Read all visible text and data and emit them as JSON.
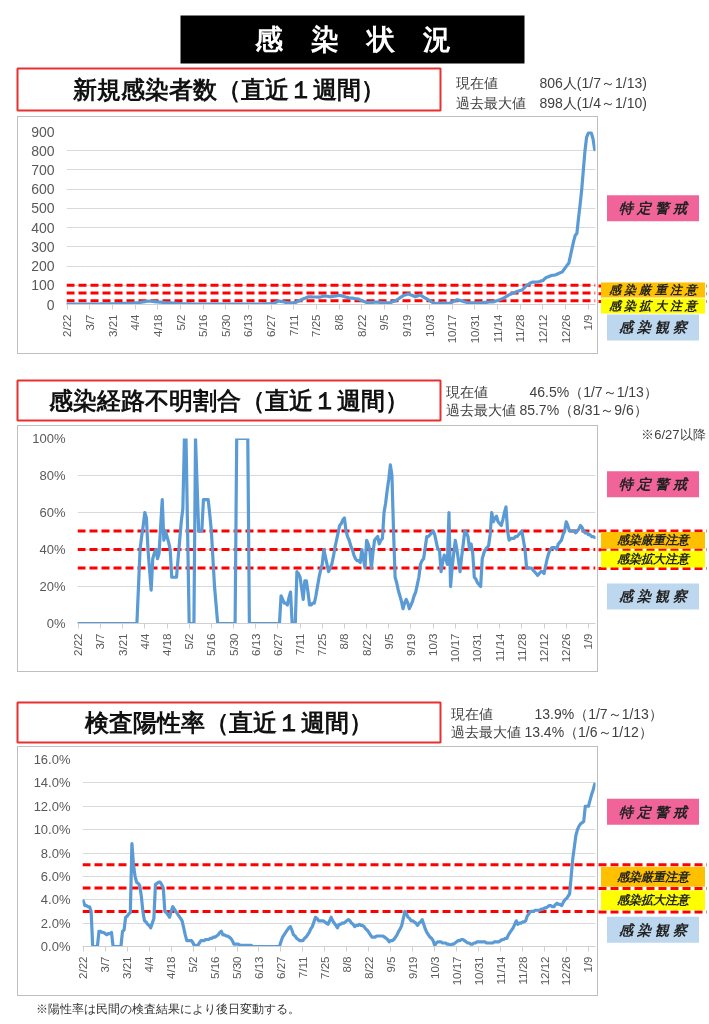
{
  "chart_data": [
    {
      "type": "other",
      "title": "感　染　状　況"
    },
    {
      "type": "line",
      "title": "新規感染者数（直近１週間）",
      "annotations": [
        "現在値　　　806人(1/7～1/13)",
        "過去最大値　898人(1/4～1/10)",
        "特 定 警 戒",
        "感 染 厳 重 注 意",
        "感 染 拡 大 注 意",
        "感 染 観 察"
      ],
      "categories": [
        "2/22",
        null,
        null,
        null,
        null,
        null,
        null,
        null,
        null,
        null,
        null,
        null,
        null,
        null,
        "3/7",
        null,
        null,
        null,
        null,
        null,
        null,
        null,
        null,
        null,
        null,
        null,
        null,
        null,
        "3/21",
        null,
        null,
        null,
        null,
        null,
        null,
        null,
        null,
        null,
        null,
        null,
        null,
        null,
        "4/4",
        null,
        null,
        null,
        null,
        null,
        null,
        null,
        null,
        null,
        null,
        null,
        null,
        null,
        "4/18",
        null,
        null,
        null,
        null,
        null,
        null,
        null,
        null,
        null,
        null,
        null,
        null,
        null,
        "5/2",
        null,
        null,
        null,
        null,
        null,
        null,
        null,
        null,
        null,
        null,
        null,
        null,
        null,
        "5/16",
        null,
        null,
        null,
        null,
        null,
        null,
        null,
        null,
        null,
        null,
        null,
        null,
        null,
        "5/30",
        null,
        null,
        null,
        null,
        null,
        null,
        null,
        null,
        null,
        null,
        null,
        null,
        null,
        "6/13",
        null,
        null,
        null,
        null,
        null,
        null,
        null,
        null,
        null,
        null,
        null,
        null,
        null,
        "6/27",
        null,
        null,
        null,
        null,
        null,
        null,
        null,
        null,
        null,
        null,
        null,
        null,
        null,
        "7/11",
        null,
        null,
        null,
        null,
        null,
        null,
        null,
        null,
        null,
        null,
        null,
        null,
        null,
        "7/25",
        null,
        null,
        null,
        null,
        null,
        null,
        null,
        null,
        null,
        null,
        null,
        null,
        null,
        "8/8",
        null,
        null,
        null,
        null,
        null,
        null,
        null,
        null,
        null,
        null,
        null,
        null,
        null,
        "8/22",
        null,
        null,
        null,
        null,
        null,
        null,
        null,
        null,
        null,
        null,
        null,
        null,
        null,
        "9/5",
        null,
        null,
        null,
        null,
        null,
        null,
        null,
        null,
        null,
        null,
        null,
        null,
        null,
        "9/19",
        null,
        null,
        null,
        null,
        null,
        null,
        null,
        null,
        null,
        null,
        null,
        null,
        null,
        "10/3",
        null,
        null,
        null,
        null,
        null,
        null,
        null,
        null,
        null,
        null,
        null,
        null,
        null,
        "10/17",
        null,
        null,
        null,
        null,
        null,
        null,
        null,
        null,
        null,
        null,
        null,
        null,
        null,
        "10/31",
        null,
        null,
        null,
        null,
        null,
        null,
        null,
        null,
        null,
        null,
        null,
        null,
        null,
        "11/14",
        null,
        null,
        null,
        null,
        null,
        null,
        null,
        null,
        null,
        null,
        null,
        null,
        null,
        "11/28",
        null,
        null,
        null,
        null,
        null,
        null,
        null,
        null,
        null,
        null,
        null,
        null,
        null,
        "12/12",
        null,
        null,
        null,
        null,
        null,
        null,
        null,
        null,
        null,
        null,
        null,
        null,
        null,
        "12/26",
        null,
        null,
        null,
        null,
        null,
        null,
        null,
        null,
        null,
        null,
        null,
        null,
        null,
        "1/9",
        null,
        null,
        null,
        null
      ],
      "series": [
        {
          "color": "#5b9bd5",
          "values": [
            2,
            2,
            2,
            2,
            2,
            2,
            2,
            2,
            2,
            2,
            2,
            2,
            2,
            2,
            2,
            2,
            2,
            2,
            2,
            2,
            2,
            3,
            3,
            3,
            3,
            4,
            4,
            4,
            4,
            4,
            5,
            5,
            5,
            5,
            5,
            6,
            6,
            6,
            6,
            7,
            7,
            7,
            8,
            8,
            9,
            11,
            12,
            14,
            15,
            17,
            18,
            17,
            17,
            16,
            15,
            14,
            13,
            12,
            12,
            11,
            10,
            9,
            9,
            8,
            8,
            7,
            7,
            6,
            6,
            5,
            5,
            4,
            4,
            4,
            3,
            3,
            3,
            2,
            2,
            2,
            2,
            2,
            2,
            2,
            2,
            2,
            2,
            2,
            2,
            2,
            2,
            2,
            2,
            2,
            2,
            2,
            2,
            2,
            2,
            2,
            2,
            2,
            2,
            2,
            2,
            2,
            2,
            2,
            2,
            2,
            2,
            2,
            2,
            2,
            2,
            2,
            2,
            2,
            2,
            2,
            2,
            3,
            3,
            3,
            4,
            4,
            5,
            5,
            8,
            12,
            15,
            18,
            16,
            15,
            13,
            11,
            10,
            8,
            9,
            9,
            10,
            10,
            14,
            18,
            22,
            26,
            30,
            33,
            37,
            40,
            40,
            40,
            39,
            39,
            39,
            38,
            38,
            40,
            43,
            45,
            44,
            43,
            41,
            40,
            42,
            43,
            45,
            46,
            48,
            46,
            44,
            42,
            39,
            37,
            35,
            34,
            33,
            32,
            30,
            29,
            28,
            24,
            21,
            17,
            14,
            10,
            10,
            11,
            11,
            11,
            12,
            12,
            12,
            11,
            11,
            10,
            10,
            9,
            9,
            8,
            11,
            14,
            17,
            20,
            26,
            31,
            37,
            42,
            48,
            50,
            53,
            55,
            51,
            48,
            44,
            40,
            43,
            47,
            50,
            45,
            40,
            35,
            30,
            25,
            20,
            15,
            10,
            5,
            6,
            6,
            7,
            7,
            8,
            8,
            7,
            6,
            5,
            9,
            13,
            17,
            21,
            25,
            23,
            20,
            18,
            15,
            13,
            11,
            10,
            8,
            8,
            8,
            9,
            9,
            9,
            9,
            10,
            10,
            11,
            11,
            12,
            13,
            14,
            14,
            15,
            18,
            21,
            24,
            27,
            30,
            35,
            40,
            45,
            50,
            54,
            57,
            61,
            64,
            68,
            70,
            73,
            75,
            83,
            92,
            100,
            105,
            110,
            115,
            116,
            116,
            117,
            118,
            120,
            123,
            125,
            133,
            140,
            143,
            147,
            150,
            152,
            153,
            155,
            159,
            163,
            166,
            170,
            182,
            193,
            205,
            215,
            253,
            292,
            330,
            360,
            370,
            450,
            520,
            600,
            700,
            800,
            870,
            890,
            898,
            890,
            860,
            806
          ]
        }
      ],
      "ylim": [
        0,
        900
      ],
      "yticks": [
        0,
        100,
        200,
        300,
        400,
        500,
        600,
        700,
        800,
        900
      ],
      "grid": "y",
      "ref_lines": [
        {
          "axis": "y",
          "value": 100,
          "color": "#ff0000",
          "line_style": "dashed"
        },
        {
          "axis": "y",
          "value": 60,
          "color": "#ff0000",
          "line_style": "dashed"
        },
        {
          "axis": "y",
          "value": 20,
          "color": "#ff0000",
          "line_style": "dashed"
        }
      ]
    },
    {
      "type": "line",
      "title": "感染経路不明割合（直近１週間）",
      "annotations": [
        "現在値　　　46.5%（1/7～1/13）",
        "過去最大値 85.7%（8/31～9/6）",
        "特 定 警 戒",
        "感染厳重注意",
        "感染拡大注意",
        "感 染 観 察",
        "※6/27以降"
      ],
      "categories": [
        "2/22",
        null,
        null,
        null,
        null,
        null,
        null,
        null,
        null,
        null,
        null,
        null,
        null,
        null,
        "3/7",
        null,
        null,
        null,
        null,
        null,
        null,
        null,
        null,
        null,
        null,
        null,
        null,
        null,
        "3/21",
        null,
        null,
        null,
        null,
        null,
        null,
        null,
        null,
        null,
        null,
        null,
        null,
        null,
        "4/4",
        null,
        null,
        null,
        null,
        null,
        null,
        null,
        null,
        null,
        null,
        null,
        null,
        null,
        "4/18",
        null,
        null,
        null,
        null,
        null,
        null,
        null,
        null,
        null,
        null,
        null,
        null,
        null,
        "5/2",
        null,
        null,
        null,
        null,
        null,
        null,
        null,
        null,
        null,
        null,
        null,
        null,
        null,
        "5/16",
        null,
        null,
        null,
        null,
        null,
        null,
        null,
        null,
        null,
        null,
        null,
        null,
        null,
        "5/30",
        null,
        null,
        null,
        null,
        null,
        null,
        null,
        null,
        null,
        null,
        null,
        null,
        null,
        "6/13",
        null,
        null,
        null,
        null,
        null,
        null,
        null,
        null,
        null,
        null,
        null,
        null,
        null,
        "6/27",
        null,
        null,
        null,
        null,
        null,
        null,
        null,
        null,
        null,
        null,
        null,
        null,
        null,
        "7/11",
        null,
        null,
        null,
        null,
        null,
        null,
        null,
        null,
        null,
        null,
        null,
        null,
        null,
        "7/25",
        null,
        null,
        null,
        null,
        null,
        null,
        null,
        null,
        null,
        null,
        null,
        null,
        null,
        "8/8",
        null,
        null,
        null,
        null,
        null,
        null,
        null,
        null,
        null,
        null,
        null,
        null,
        null,
        "8/22",
        null,
        null,
        null,
        null,
        null,
        null,
        null,
        null,
        null,
        null,
        null,
        null,
        null,
        "9/5",
        null,
        null,
        null,
        null,
        null,
        null,
        null,
        null,
        null,
        null,
        null,
        null,
        null,
        "9/19",
        null,
        null,
        null,
        null,
        null,
        null,
        null,
        null,
        null,
        null,
        null,
        null,
        null,
        "10/3",
        null,
        null,
        null,
        null,
        null,
        null,
        null,
        null,
        null,
        null,
        null,
        null,
        null,
        "10/17",
        null,
        null,
        null,
        null,
        null,
        null,
        null,
        null,
        null,
        null,
        null,
        null,
        null,
        "10/31",
        null,
        null,
        null,
        null,
        null,
        null,
        null,
        null,
        null,
        null,
        null,
        null,
        null,
        "11/14",
        null,
        null,
        null,
        null,
        null,
        null,
        null,
        null,
        null,
        null,
        null,
        null,
        null,
        "11/28",
        null,
        null,
        null,
        null,
        null,
        null,
        null,
        null,
        null,
        null,
        null,
        null,
        null,
        "12/12",
        null,
        null,
        null,
        null,
        null,
        null,
        null,
        null,
        null,
        null,
        null,
        null,
        null,
        "12/26",
        null,
        null,
        null,
        null,
        null,
        null,
        null,
        null,
        null,
        null,
        null,
        null,
        null,
        "1/9",
        null,
        null,
        null,
        null
      ],
      "series": [
        {
          "color": "#5b9bd5",
          "values": [
            0,
            0,
            0,
            0,
            0,
            0,
            0,
            0,
            0,
            0,
            0,
            0,
            0,
            0,
            0,
            0,
            0,
            0,
            0,
            0,
            0,
            0,
            0,
            0,
            0,
            0,
            0,
            0,
            0,
            0,
            0,
            0,
            0,
            0,
            0,
            0,
            0,
            0,
            20,
            40,
            47,
            53,
            60,
            57,
            40,
            29,
            18,
            35,
            38,
            40,
            35,
            38,
            53,
            67,
            45,
            50,
            47,
            44,
            40,
            25,
            25,
            25,
            25,
            35,
            45,
            55,
            62,
            100,
            100,
            50,
            0,
            0,
            0,
            0,
            100,
            75,
            50,
            50,
            50,
            67,
            67,
            67,
            67,
            59,
            50,
            35,
            20,
            10,
            0,
            0,
            0,
            0,
            0,
            0,
            0,
            0,
            0,
            0,
            0,
            0,
            100,
            100,
            100,
            100,
            100,
            100,
            100,
            100,
            0,
            0,
            0,
            0,
            0,
            0,
            0,
            0,
            0,
            0,
            0,
            0,
            0,
            0,
            0,
            0,
            0,
            0,
            0,
            0,
            15,
            13,
            11,
            11,
            10,
            14,
            17,
            0,
            0,
            0,
            28,
            27,
            25,
            19,
            13,
            23,
            23,
            17,
            10,
            10,
            11,
            11,
            15,
            20,
            25,
            29,
            32,
            40,
            36,
            32,
            28,
            30,
            32,
            36,
            41,
            45,
            49,
            53,
            54,
            56,
            57,
            50,
            47,
            45,
            42,
            40,
            37,
            35,
            34,
            34,
            33,
            40,
            35,
            30,
            45,
            43,
            40,
            30,
            38,
            45,
            46,
            47,
            43,
            45,
            46,
            60,
            65,
            72,
            78,
            85.7,
            80,
            50,
            25,
            22,
            18,
            15,
            12,
            8,
            11,
            13,
            11,
            8,
            10,
            12,
            15,
            17,
            21,
            25,
            32,
            34,
            35,
            41,
            47,
            47,
            48,
            49,
            50,
            48,
            44,
            40,
            40,
            28,
            33,
            37,
            35,
            32,
            60,
            20,
            30,
            38,
            45,
            40,
            34,
            28,
            36,
            43,
            50,
            49,
            47,
            40,
            43,
            38,
            25,
            24,
            22,
            21,
            20,
            35,
            38,
            40,
            41,
            42,
            48,
            60,
            55,
            57,
            58,
            55,
            54,
            53,
            56,
            60,
            63,
            50,
            45,
            46,
            46,
            46,
            47,
            47,
            48,
            49,
            50,
            45,
            40,
            30,
            30,
            30,
            30,
            29,
            28,
            27,
            26,
            27,
            28,
            28,
            27,
            31,
            35,
            38,
            40,
            41,
            41,
            41,
            40,
            43,
            44,
            45,
            48,
            50,
            55,
            53,
            50,
            50,
            50,
            50,
            49,
            50,
            51,
            53,
            52,
            50,
            49,
            49,
            48,
            48,
            47,
            47,
            46.5
          ]
        }
      ],
      "ylim": [
        0,
        100
      ],
      "yticks": [
        {
          "value": 0,
          "label": "0%"
        },
        {
          "value": 20,
          "label": "20%"
        },
        {
          "value": 40,
          "label": "40%"
        },
        {
          "value": 60,
          "label": "60%"
        },
        {
          "value": 80,
          "label": "80%"
        },
        {
          "value": 100,
          "label": "100%"
        }
      ],
      "grid": "y",
      "ref_lines": [
        {
          "axis": "y",
          "value": 50,
          "color": "#ff0000",
          "line_style": "dashed"
        },
        {
          "axis": "y",
          "value": 40,
          "color": "#ff0000",
          "line_style": "dashed"
        },
        {
          "axis": "y",
          "value": 30,
          "color": "#ff0000",
          "line_style": "dashed"
        }
      ]
    },
    {
      "type": "line",
      "title": "検査陽性率（直近１週間）",
      "annotations": [
        "現在値　　　13.9%（1/7～1/13）",
        "過去最大値 13.4%（1/6～1/12）",
        "特 定 警 戒",
        "感染厳重注意",
        "感染拡大注意",
        "感 染 観 察",
        "※陽性率は民間の検査結果により後日変動する。"
      ],
      "categories": [
        "2/22",
        null,
        null,
        null,
        null,
        null,
        null,
        null,
        null,
        null,
        null,
        null,
        null,
        null,
        "3/7",
        null,
        null,
        null,
        null,
        null,
        null,
        null,
        null,
        null,
        null,
        null,
        null,
        null,
        "3/21",
        null,
        null,
        null,
        null,
        null,
        null,
        null,
        null,
        null,
        null,
        null,
        null,
        null,
        "4/4",
        null,
        null,
        null,
        null,
        null,
        null,
        null,
        null,
        null,
        null,
        null,
        null,
        null,
        "4/18",
        null,
        null,
        null,
        null,
        null,
        null,
        null,
        null,
        null,
        null,
        null,
        null,
        null,
        "5/2",
        null,
        null,
        null,
        null,
        null,
        null,
        null,
        null,
        null,
        null,
        null,
        null,
        null,
        "5/16",
        null,
        null,
        null,
        null,
        null,
        null,
        null,
        null,
        null,
        null,
        null,
        null,
        null,
        "5/30",
        null,
        null,
        null,
        null,
        null,
        null,
        null,
        null,
        null,
        null,
        null,
        null,
        null,
        "6/13",
        null,
        null,
        null,
        null,
        null,
        null,
        null,
        null,
        null,
        null,
        null,
        null,
        null,
        "6/27",
        null,
        null,
        null,
        null,
        null,
        null,
        null,
        null,
        null,
        null,
        null,
        null,
        null,
        "7/11",
        null,
        null,
        null,
        null,
        null,
        null,
        null,
        null,
        null,
        null,
        null,
        null,
        null,
        "7/25",
        null,
        null,
        null,
        null,
        null,
        null,
        null,
        null,
        null,
        null,
        null,
        null,
        null,
        "8/8",
        null,
        null,
        null,
        null,
        null,
        null,
        null,
        null,
        null,
        null,
        null,
        null,
        null,
        "8/22",
        null,
        null,
        null,
        null,
        null,
        null,
        null,
        null,
        null,
        null,
        null,
        null,
        null,
        "9/5",
        null,
        null,
        null,
        null,
        null,
        null,
        null,
        null,
        null,
        null,
        null,
        null,
        null,
        "9/19",
        null,
        null,
        null,
        null,
        null,
        null,
        null,
        null,
        null,
        null,
        null,
        null,
        null,
        "10/3",
        null,
        null,
        null,
        null,
        null,
        null,
        null,
        null,
        null,
        null,
        null,
        null,
        null,
        "10/17",
        null,
        null,
        null,
        null,
        null,
        null,
        null,
        null,
        null,
        null,
        null,
        null,
        null,
        "10/31",
        null,
        null,
        null,
        null,
        null,
        null,
        null,
        null,
        null,
        null,
        null,
        null,
        null,
        "11/14",
        null,
        null,
        null,
        null,
        null,
        null,
        null,
        null,
        null,
        null,
        null,
        null,
        null,
        "11/28",
        null,
        null,
        null,
        null,
        null,
        null,
        null,
        null,
        null,
        null,
        null,
        null,
        null,
        "12/12",
        null,
        null,
        null,
        null,
        null,
        null,
        null,
        null,
        null,
        null,
        null,
        null,
        null,
        "12/26",
        null,
        null,
        null,
        null,
        null,
        null,
        null,
        null,
        null,
        null,
        null,
        null,
        null,
        "1/9",
        null,
        null,
        null,
        null
      ],
      "series": [
        {
          "color": "#5b9bd5",
          "values": [
            3.9,
            3.5,
            3.5,
            3.4,
            3.4,
            3.0,
            0,
            0,
            0,
            0,
            1.3,
            1.3,
            1.2,
            1.2,
            1.1,
            1.0,
            1.1,
            1.1,
            1.2,
            0,
            0,
            0,
            0,
            0,
            0,
            1.3,
            1.4,
            2.5,
            2.6,
            2.8,
            2.9,
            8.8,
            7.0,
            6.0,
            5.5,
            5.4,
            5.2,
            4.3,
            3.0,
            2.2,
            2.1,
            1.9,
            1.8,
            1.6,
            2.0,
            2.4,
            5.3,
            5.4,
            5.5,
            5.5,
            5.3,
            5.0,
            3.0,
            2.9,
            2.7,
            2.5,
            3.0,
            3.4,
            3.2,
            3.0,
            2.8,
            2.6,
            2.4,
            2.2,
            1.6,
            1.0,
            0.5,
            0.5,
            0.5,
            0.5,
            0.3,
            0,
            0.1,
            0.1,
            0.3,
            0.5,
            0.5,
            0.5,
            0.6,
            0.6,
            0.6,
            0.7,
            0.7,
            0.8,
            0.8,
            0.9,
            1.0,
            1.2,
            1.3,
            1.0,
            1.0,
            0.9,
            0.9,
            0.8,
            0.7,
            0.5,
            0.2,
            0.2,
            0.2,
            0.2,
            0.1,
            0.1,
            0.1,
            0.1,
            0.1,
            0.1,
            0.1,
            0.1,
            0,
            0,
            0,
            0,
            0,
            0,
            0,
            0,
            0,
            0,
            0,
            0,
            0,
            0,
            0,
            0,
            0,
            0,
            0.4,
            0.8,
            1.0,
            1.2,
            1.4,
            1.6,
            1.7,
            1.4,
            1.0,
            0.9,
            0.7,
            0.6,
            0.5,
            0.5,
            0.5,
            0.7,
            0.8,
            1.0,
            1.2,
            1.5,
            1.7,
            2.1,
            2.5,
            2.4,
            2.2,
            2.2,
            2.2,
            2.2,
            2.1,
            2.0,
            1.9,
            2.2,
            2.5,
            2.2,
            2.0,
            1.8,
            1.6,
            1.9,
            1.9,
            2.0,
            2.0,
            2.1,
            2.2,
            2.3,
            2.2,
            2.0,
            1.9,
            1.7,
            1.8,
            1.8,
            1.9,
            1.8,
            1.8,
            1.7,
            1.5,
            1.4,
            1.2,
            1.0,
            0.8,
            0.8,
            0.8,
            0.9,
            0.9,
            0.9,
            0.9,
            0.9,
            0.8,
            0.7,
            0.6,
            0.4,
            0.5,
            0.5,
            0.6,
            0.8,
            1.0,
            1.3,
            1.5,
            1.8,
            2.4,
            3.0,
            2.8,
            2.5,
            2.4,
            2.2,
            2.2,
            2.1,
            2.0,
            1.8,
            2.0,
            2.1,
            2.3,
            1.9,
            1.5,
            1.2,
            1.0,
            0.8,
            0.7,
            0.5,
            0.1,
            0.3,
            0.4,
            0.4,
            0.4,
            0.3,
            0.3,
            0.3,
            0.2,
            0.2,
            0.1,
            0.2,
            0.2,
            0.3,
            0.4,
            0.5,
            0.5,
            0.6,
            0.6,
            0.5,
            0.4,
            0.3,
            0.3,
            0.2,
            0.2,
            0.3,
            0.3,
            0.4,
            0.4,
            0.4,
            0.4,
            0.4,
            0.4,
            0.3,
            0.3,
            0.3,
            0.3,
            0.3,
            0.4,
            0.4,
            0.4,
            0.4,
            0.5,
            0.6,
            0.6,
            0.7,
            0.7,
            1.0,
            1.2,
            1.4,
            1.6,
            1.9,
            2.2,
            1.9,
            2.0,
            2.0,
            2.1,
            2.1,
            2.2,
            2.6,
            2.8,
            3.0,
            3.0,
            3.0,
            3.1,
            3.1,
            3.1,
            3.1,
            3.2,
            3.2,
            3.3,
            3.3,
            3.4,
            3.5,
            3.5,
            3.4,
            3.4,
            3.6,
            3.7,
            3.6,
            3.6,
            3.5,
            3.8,
            4.0,
            4.1,
            4.3,
            4.5,
            6.0,
            7.5,
            8.5,
            9.5,
            10.0,
            10.3,
            10.5,
            10.6,
            10.7,
            12.0,
            12.0,
            12.0,
            12.5,
            13.0,
            13.4,
            13.9
          ]
        }
      ],
      "ylim": [
        0,
        16
      ],
      "yticks": [
        {
          "value": 0,
          "label": "0.0%"
        },
        {
          "value": 2,
          "label": "2.0%"
        },
        {
          "value": 4,
          "label": "4.0%"
        },
        {
          "value": 6,
          "label": "6.0%"
        },
        {
          "value": 8,
          "label": "8.0%"
        },
        {
          "value": 10,
          "label": "10.0%"
        },
        {
          "value": 12,
          "label": "12.0%"
        },
        {
          "value": 14,
          "label": "14.0%"
        },
        {
          "value": 16,
          "label": "16.0%"
        }
      ],
      "grid": "y",
      "ref_lines": [
        {
          "axis": "y",
          "value": 7,
          "color": "#ff0000",
          "line_style": "dashed"
        },
        {
          "axis": "y",
          "value": 5,
          "color": "#ff0000",
          "line_style": "dashed"
        },
        {
          "axis": "y",
          "value": 3,
          "color": "#ff0000",
          "line_style": "dashed"
        }
      ]
    }
  ]
}
